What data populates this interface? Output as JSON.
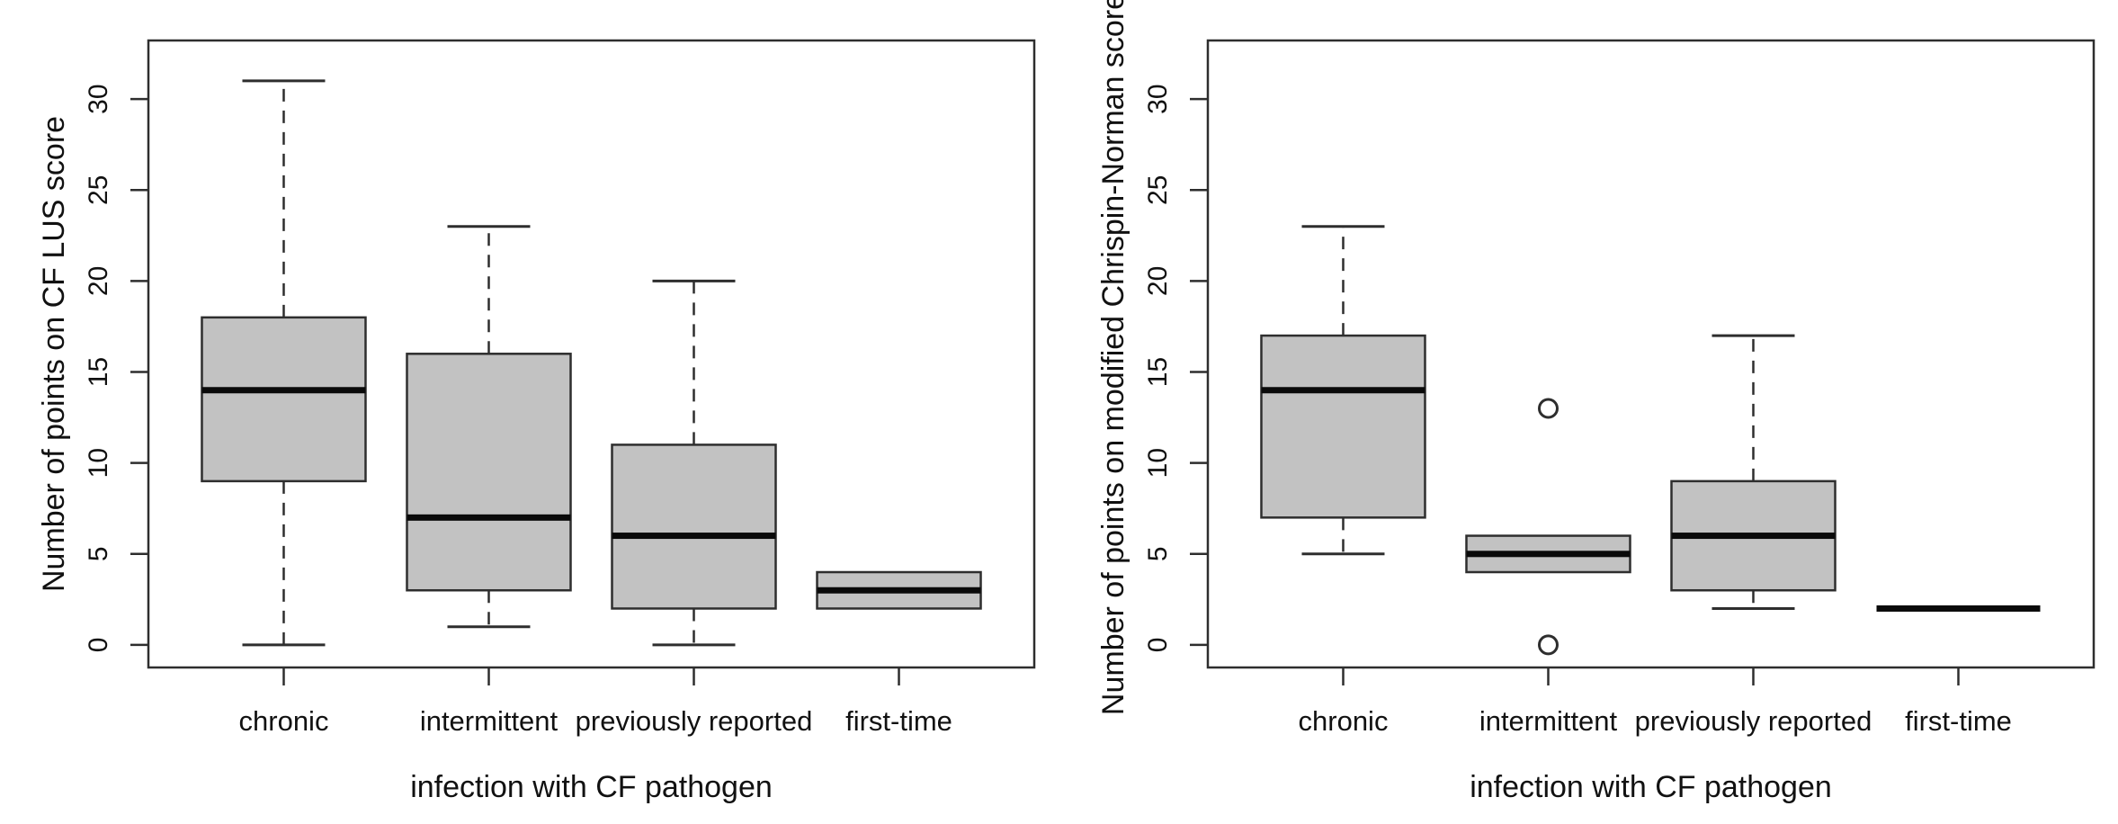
{
  "figure": {
    "background": "#ffffff",
    "box_fill_color": "#c2c2c2",
    "line_color": "#2e2e2e",
    "median_color": "#0a0a0a",
    "text_color": "#111111"
  },
  "chart_data": [
    {
      "type": "boxplot",
      "panel": "left",
      "title": "",
      "xlabel": "infection with CF pathogen",
      "ylabel": "Number of points on CF LUS score",
      "categories": [
        "chronic",
        "intermittent",
        "previously reported",
        "first-time"
      ],
      "yticks": [
        0,
        5,
        10,
        15,
        20,
        25,
        30
      ],
      "ylim": [
        -1.24,
        33.22
      ],
      "grid": false,
      "legend": null,
      "boxes": [
        {
          "category": "chronic",
          "whisker_low": 0,
          "q1": 9,
          "median": 14,
          "q3": 18,
          "whisker_high": 31,
          "outliers": []
        },
        {
          "category": "intermittent",
          "whisker_low": 1,
          "q1": 3,
          "median": 7,
          "q3": 16,
          "whisker_high": 23,
          "outliers": []
        },
        {
          "category": "previously reported",
          "whisker_low": 0,
          "q1": 2,
          "median": 6,
          "q3": 11,
          "whisker_high": 20,
          "outliers": []
        },
        {
          "category": "first-time",
          "whisker_low": 2,
          "q1": 2,
          "median": 3,
          "q3": 4,
          "whisker_high": 4,
          "outliers": []
        }
      ]
    },
    {
      "type": "boxplot",
      "panel": "right",
      "title": "",
      "xlabel": "infection with CF pathogen",
      "ylabel": "Number of points on modified Chrispin-Norman score",
      "categories": [
        "chronic",
        "intermittent",
        "previously reported",
        "first-time"
      ],
      "yticks": [
        0,
        5,
        10,
        15,
        20,
        25,
        30
      ],
      "ylim": [
        -1.24,
        33.22
      ],
      "grid": false,
      "legend": null,
      "boxes": [
        {
          "category": "chronic",
          "whisker_low": 5,
          "q1": 7,
          "median": 14,
          "q3": 17,
          "whisker_high": 23,
          "outliers": []
        },
        {
          "category": "intermittent",
          "whisker_low": 4,
          "q1": 4,
          "median": 5,
          "q3": 6,
          "whisker_high": 6,
          "outliers": [
            13,
            0
          ]
        },
        {
          "category": "previously reported",
          "whisker_low": 2,
          "q1": 3,
          "median": 6,
          "q3": 9,
          "whisker_high": 17,
          "outliers": []
        },
        {
          "category": "first-time",
          "whisker_low": 2,
          "q1": 2,
          "median": 2,
          "q3": 2,
          "whisker_high": 2,
          "outliers": []
        }
      ]
    }
  ]
}
